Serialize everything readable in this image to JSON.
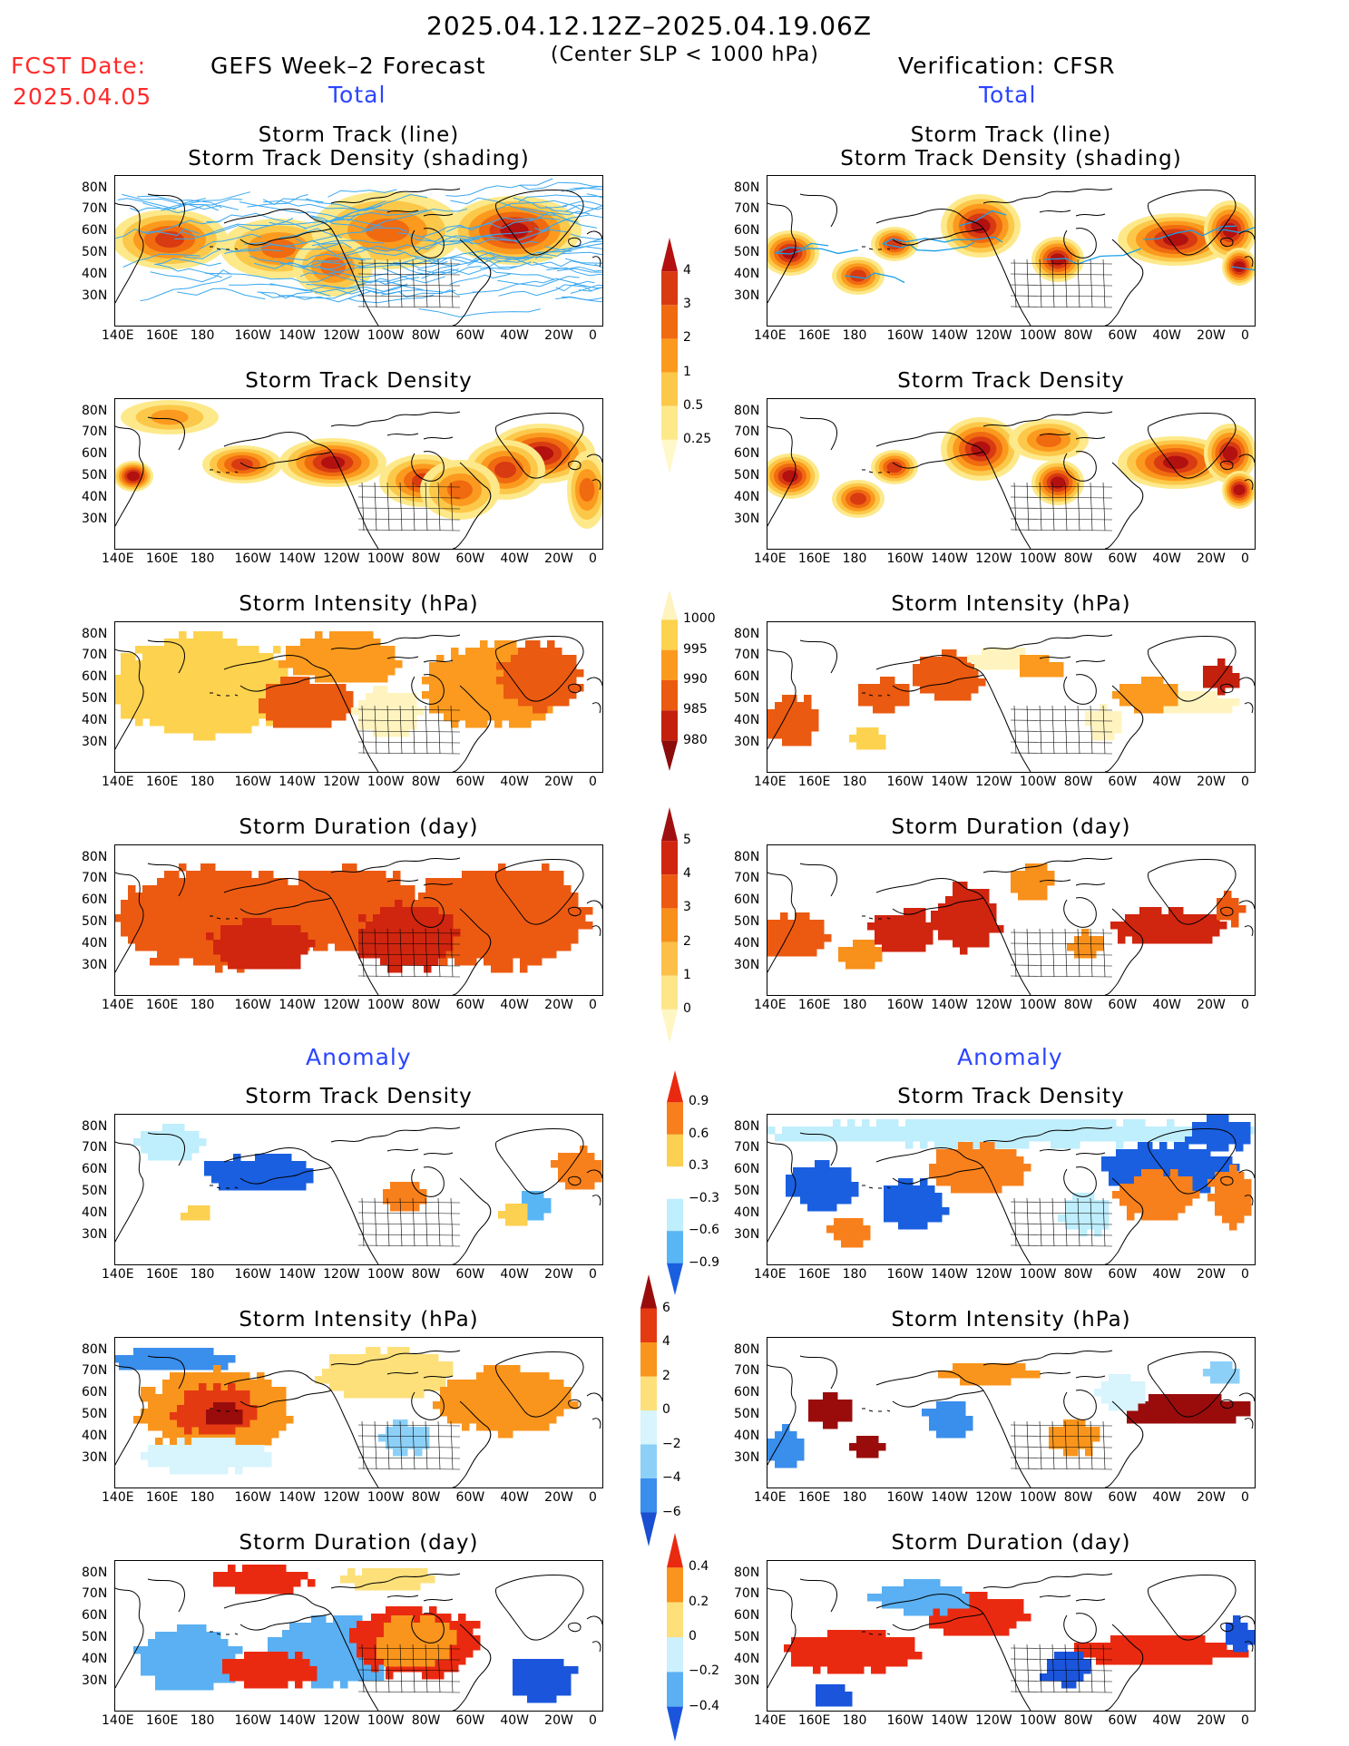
{
  "header": {
    "period": "2025.04.12.12Z–2025.04.19.06Z",
    "subtitle": "(Center SLP < 1000 hPa)",
    "fcst_label": "FCST Date:",
    "fcst_date": "2025.04.05",
    "left_title": "GEFS Week–2 Forecast",
    "right_title": "Verification: CFSR",
    "total_label": "Total",
    "anomaly_label": "Anomaly"
  },
  "axes": {
    "lat_labels": [
      "80N",
      "70N",
      "60N",
      "50N",
      "40N",
      "30N"
    ],
    "lon_labels": [
      "140E",
      "160E",
      "180",
      "160W",
      "140W",
      "120W",
      "100W",
      "80W",
      "60W",
      "40W",
      "20W",
      "0"
    ]
  },
  "panels": [
    {
      "id": "track-fc",
      "title": [
        "Storm Track (line)",
        "Storm Track Density (shading)"
      ],
      "field": "track",
      "source": "GEFS"
    },
    {
      "id": "track-vf",
      "title": [
        "Storm Track (line)",
        "Storm Track Density (shading)"
      ],
      "field": "track",
      "source": "CFSR"
    },
    {
      "id": "dens-fc",
      "title": [
        "Storm Track Density"
      ],
      "field": "density",
      "source": "GEFS"
    },
    {
      "id": "dens-vf",
      "title": [
        "Storm Track Density"
      ],
      "field": "density",
      "source": "CFSR"
    },
    {
      "id": "int-fc",
      "title": [
        "Storm Intensity (hPa)"
      ],
      "field": "intensity",
      "source": "GEFS"
    },
    {
      "id": "int-vf",
      "title": [
        "Storm Intensity (hPa)"
      ],
      "field": "intensity",
      "source": "CFSR"
    },
    {
      "id": "dur-fc",
      "title": [
        "Storm Duration (day)"
      ],
      "field": "duration",
      "source": "GEFS"
    },
    {
      "id": "dur-vf",
      "title": [
        "Storm Duration (day)"
      ],
      "field": "duration",
      "source": "CFSR"
    },
    {
      "id": "adens-fc",
      "title": [
        "Storm Track Density"
      ],
      "field": "anom_density",
      "source": "GEFS"
    },
    {
      "id": "adens-vf",
      "title": [
        "Storm Track Density"
      ],
      "field": "anom_density",
      "source": "CFSR"
    },
    {
      "id": "aint-fc",
      "title": [
        "Storm Intensity (hPa)"
      ],
      "field": "anom_intensity",
      "source": "GEFS"
    },
    {
      "id": "aint-vf",
      "title": [
        "Storm Intensity (hPa)"
      ],
      "field": "anom_intensity",
      "source": "CFSR"
    },
    {
      "id": "adur-fc",
      "title": [
        "Storm Duration (day)"
      ],
      "field": "anom_duration",
      "source": "GEFS"
    },
    {
      "id": "adur-vf",
      "title": [
        "Storm Duration (day)"
      ],
      "field": "anom_duration",
      "source": "CFSR"
    }
  ],
  "colorbars": {
    "density": {
      "labels": [
        "4",
        "3",
        "2",
        "1",
        "0.5",
        "0.25"
      ],
      "colors": [
        "#b31010",
        "#d83a12",
        "#f06a10",
        "#fb9a1e",
        "#fcc84a",
        "#fde98a",
        "#fff8c8"
      ]
    },
    "intensity": {
      "labels": [
        "1000",
        "995",
        "990",
        "985",
        "980"
      ],
      "colors": [
        "#fff4c0",
        "#fdd24e",
        "#fb9a1e",
        "#ea5a10",
        "#c3200d",
        "#8c0c0c"
      ]
    },
    "duration": {
      "labels": [
        "5",
        "4",
        "3",
        "2",
        "1",
        "0"
      ],
      "colors": [
        "#a01010",
        "#d0250f",
        "#ec5a12",
        "#f8901c",
        "#fcc048",
        "#fde588",
        "#fff6c4"
      ]
    },
    "anom_density": {
      "labels": [
        "0.9",
        "0.6",
        "0.3",
        "−0.3",
        "−0.6",
        "−0.9"
      ],
      "colors": [
        "#ea2a10",
        "#f8801c",
        "#fcd050",
        "#ffffff",
        "#bfeefc",
        "#58b6f4",
        "#1a5fe0"
      ]
    },
    "anom_intensity": {
      "labels": [
        "6",
        "4",
        "2",
        "0",
        "−2",
        "−4",
        "−6"
      ],
      "colors": [
        "#9a0c0c",
        "#e43a12",
        "#f9951c",
        "#fde07a",
        "#d8f4fd",
        "#8cd0f8",
        "#3a8eec",
        "#1a4fd0"
      ]
    },
    "anom_duration": {
      "labels": [
        "0.4",
        "0.2",
        "0",
        "−0.2",
        "−0.4"
      ],
      "colors": [
        "#ea2a10",
        "#f9951c",
        "#fde07a",
        "#ccf0fd",
        "#5ab0f2",
        "#1a55dc"
      ]
    }
  },
  "colors": {
    "accent_red": "#ff2a2a",
    "accent_blue": "#2b45ff",
    "track_line": "#1aa0e8",
    "track_line_fc": "#3aa8f0"
  }
}
